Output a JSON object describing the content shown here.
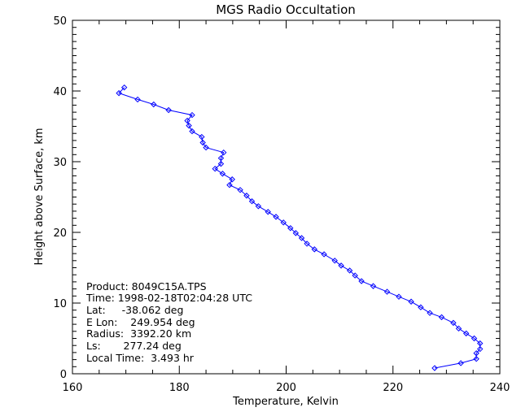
{
  "chart_data": {
    "type": "line",
    "title": "MGS Radio Occultation",
    "xlabel": "Temperature, Kelvin",
    "ylabel": "Height above Surface, km",
    "xlim": [
      160,
      240
    ],
    "ylim": [
      0,
      50
    ],
    "x_ticks": [
      "160",
      "180",
      "200",
      "220",
      "240"
    ],
    "y_ticks": [
      "0",
      "10",
      "20",
      "30",
      "40",
      "50"
    ],
    "x_tick_values": [
      160,
      180,
      200,
      220,
      240
    ],
    "y_tick_values": [
      0,
      10,
      20,
      30,
      40,
      50
    ],
    "x_minor_step": 5,
    "y_minor_step": 1,
    "grid": false,
    "legend": "none",
    "series": [
      {
        "name": "temperature profile",
        "color": "#0000ff",
        "marker": "diamond",
        "temperature": [
          227.8,
          232.7,
          235.6,
          235.6,
          236.3,
          236.3,
          235.2,
          233.7,
          232.3,
          231.3,
          229.1,
          226.9,
          225.2,
          223.4,
          221.1,
          218.9,
          216.3,
          214.1,
          212.9,
          211.9,
          210.3,
          209.1,
          207.1,
          205.3,
          203.9,
          202.9,
          201.8,
          200.8,
          199.5,
          198.1,
          196.6,
          194.8,
          193.6,
          192.6,
          191.4,
          189.4,
          189.9,
          188.1,
          186.7,
          187.8,
          187.8,
          188.3,
          185.0,
          184.4,
          184.2,
          182.4,
          181.8,
          181.5,
          182.4,
          178.0,
          175.2,
          172.2,
          168.7,
          169.7
        ],
        "height": [
          0.8,
          1.5,
          2.1,
          2.9,
          3.5,
          4.3,
          5.0,
          5.7,
          6.4,
          7.2,
          8.0,
          8.6,
          9.4,
          10.2,
          10.9,
          11.6,
          12.4,
          13.1,
          13.9,
          14.6,
          15.3,
          16.0,
          16.9,
          17.6,
          18.4,
          19.2,
          19.9,
          20.6,
          21.4,
          22.2,
          22.9,
          23.7,
          24.4,
          25.2,
          26.0,
          26.7,
          27.5,
          28.3,
          29.0,
          29.7,
          30.5,
          31.3,
          32.0,
          32.7,
          33.5,
          34.3,
          35.1,
          35.8,
          36.6,
          37.3,
          38.1,
          38.8,
          39.7,
          40.5
        ]
      }
    ],
    "annotations": [
      "Product: 8049C15A.TPS",
      "Time: 1998-02-18T02:04:28 UTC",
      "Lat:     -38.062 deg",
      "E Lon:    249.954 deg",
      "Radius:  3392.20 km",
      "Ls:       277.24 deg",
      "Local Time:  3.493 hr"
    ]
  }
}
